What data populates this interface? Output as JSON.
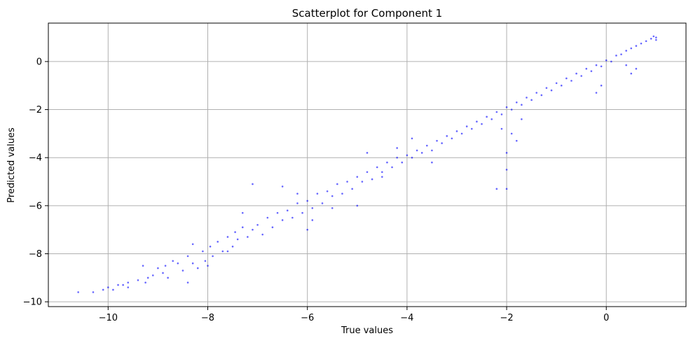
{
  "chart_data": {
    "type": "scatter",
    "title": "Scatterplot for Component 1",
    "xlabel": "True values",
    "ylabel": "Predicted values",
    "xlim": [
      -11.2,
      1.6
    ],
    "ylim": [
      -10.2,
      1.6
    ],
    "xticks": [
      -10,
      -8,
      -6,
      -4,
      -2,
      0
    ],
    "yticks": [
      -10,
      -8,
      -6,
      -4,
      -2,
      0
    ],
    "xtick_labels": [
      "−10",
      "−8",
      "−6",
      "−4",
      "−2",
      "0"
    ],
    "ytick_labels": [
      "−10",
      "−8",
      "−6",
      "−4",
      "−2",
      "0"
    ],
    "grid": true,
    "point_color": "#0000ff",
    "point_alpha": 0.6,
    "series": [
      {
        "points": [
          [
            -10.6,
            -9.6
          ],
          [
            -10.3,
            -9.6
          ],
          [
            -10.1,
            -9.5
          ],
          [
            -10.0,
            -9.4
          ],
          [
            -9.9,
            -9.5
          ],
          [
            -9.8,
            -9.3
          ],
          [
            -9.7,
            -9.3
          ],
          [
            -9.6,
            -9.4
          ],
          [
            -9.4,
            -9.1
          ],
          [
            -9.3,
            -8.5
          ],
          [
            -9.25,
            -9.2
          ],
          [
            -9.2,
            -9.0
          ],
          [
            -9.1,
            -8.9
          ],
          [
            -9.0,
            -8.6
          ],
          [
            -8.9,
            -8.8
          ],
          [
            -8.85,
            -8.5
          ],
          [
            -8.8,
            -9.0
          ],
          [
            -8.7,
            -8.3
          ],
          [
            -8.6,
            -8.4
          ],
          [
            -8.5,
            -8.7
          ],
          [
            -8.4,
            -8.1
          ],
          [
            -8.3,
            -8.4
          ],
          [
            -8.2,
            -8.6
          ],
          [
            -8.1,
            -7.9
          ],
          [
            -8.05,
            -8.3
          ],
          [
            -8.0,
            -8.5
          ],
          [
            -7.95,
            -7.7
          ],
          [
            -7.9,
            -8.1
          ],
          [
            -7.8,
            -7.5
          ],
          [
            -7.7,
            -7.9
          ],
          [
            -7.6,
            -7.3
          ],
          [
            -7.5,
            -7.7
          ],
          [
            -7.45,
            -7.1
          ],
          [
            -7.4,
            -7.4
          ],
          [
            -7.3,
            -6.9
          ],
          [
            -7.2,
            -7.3
          ],
          [
            -7.1,
            -7.0
          ],
          [
            -7.0,
            -6.8
          ],
          [
            -6.9,
            -7.2
          ],
          [
            -6.8,
            -6.5
          ],
          [
            -6.7,
            -6.9
          ],
          [
            -6.6,
            -6.3
          ],
          [
            -6.5,
            -6.6
          ],
          [
            -6.4,
            -6.2
          ],
          [
            -6.3,
            -6.5
          ],
          [
            -6.2,
            -5.9
          ],
          [
            -6.1,
            -6.3
          ],
          [
            -6.0,
            -5.8
          ],
          [
            -5.9,
            -6.1
          ],
          [
            -5.8,
            -5.5
          ],
          [
            -5.7,
            -5.9
          ],
          [
            -5.6,
            -5.4
          ],
          [
            -5.5,
            -5.6
          ],
          [
            -5.4,
            -5.1
          ],
          [
            -5.3,
            -5.5
          ],
          [
            -5.2,
            -5.0
          ],
          [
            -5.1,
            -5.3
          ],
          [
            -5.0,
            -4.8
          ],
          [
            -4.9,
            -5.0
          ],
          [
            -4.8,
            -4.6
          ],
          [
            -4.7,
            -4.9
          ],
          [
            -4.6,
            -4.4
          ],
          [
            -4.5,
            -4.6
          ],
          [
            -4.4,
            -4.2
          ],
          [
            -4.3,
            -4.4
          ],
          [
            -4.2,
            -4.0
          ],
          [
            -4.1,
            -4.2
          ],
          [
            -4.0,
            -3.9
          ],
          [
            -3.9,
            -4.0
          ],
          [
            -3.8,
            -3.7
          ],
          [
            -3.7,
            -3.8
          ],
          [
            -3.6,
            -3.5
          ],
          [
            -3.5,
            -3.7
          ],
          [
            -3.4,
            -3.3
          ],
          [
            -3.3,
            -3.4
          ],
          [
            -3.2,
            -3.1
          ],
          [
            -3.1,
            -3.2
          ],
          [
            -3.0,
            -2.9
          ],
          [
            -2.9,
            -3.0
          ],
          [
            -2.8,
            -2.7
          ],
          [
            -2.7,
            -2.8
          ],
          [
            -2.6,
            -2.5
          ],
          [
            -2.5,
            -2.6
          ],
          [
            -2.4,
            -2.3
          ],
          [
            -2.3,
            -2.4
          ],
          [
            -2.2,
            -2.1
          ],
          [
            -2.1,
            -2.2
          ],
          [
            -2.0,
            -1.9
          ],
          [
            -1.9,
            -2.0
          ],
          [
            -1.8,
            -1.7
          ],
          [
            -1.7,
            -1.8
          ],
          [
            -1.6,
            -1.5
          ],
          [
            -1.5,
            -1.6
          ],
          [
            -1.4,
            -1.3
          ],
          [
            -1.3,
            -1.4
          ],
          [
            -1.2,
            -1.1
          ],
          [
            -1.1,
            -1.2
          ],
          [
            -1.0,
            -0.9
          ],
          [
            -0.9,
            -1.0
          ],
          [
            -0.8,
            -0.7
          ],
          [
            -0.7,
            -0.8
          ],
          [
            -0.6,
            -0.5
          ],
          [
            -0.5,
            -0.6
          ],
          [
            -0.4,
            -0.3
          ],
          [
            -0.3,
            -0.4
          ],
          [
            -0.2,
            -0.15
          ],
          [
            -0.1,
            -0.2
          ],
          [
            0.0,
            0.05
          ],
          [
            0.1,
            0.0
          ],
          [
            0.2,
            0.25
          ],
          [
            0.3,
            0.3
          ],
          [
            0.4,
            0.45
          ],
          [
            0.5,
            0.55
          ],
          [
            0.6,
            0.65
          ],
          [
            0.7,
            0.75
          ],
          [
            0.8,
            0.85
          ],
          [
            0.9,
            0.95
          ],
          [
            1.0,
            1.0
          ],
          [
            1.0,
            0.9
          ],
          [
            0.95,
            1.05
          ],
          [
            -2.2,
            -5.3
          ],
          [
            -2.0,
            -5.3
          ],
          [
            -2.0,
            -4.5
          ],
          [
            -2.0,
            -3.8
          ],
          [
            -1.9,
            -3.0
          ],
          [
            -2.1,
            -2.8
          ],
          [
            -1.8,
            -3.3
          ],
          [
            -1.7,
            -2.4
          ],
          [
            -0.2,
            -1.3
          ],
          [
            -0.1,
            -1.0
          ],
          [
            0.5,
            -0.5
          ],
          [
            0.6,
            -0.3
          ],
          [
            0.4,
            -0.15
          ],
          [
            -5.9,
            -6.6
          ],
          [
            -5.0,
            -6.0
          ],
          [
            -4.5,
            -4.8
          ],
          [
            -4.8,
            -3.8
          ],
          [
            -4.2,
            -3.6
          ],
          [
            -6.2,
            -5.5
          ],
          [
            -6.5,
            -5.2
          ],
          [
            -7.3,
            -6.3
          ],
          [
            -7.1,
            -5.1
          ],
          [
            -7.6,
            -7.9
          ],
          [
            -8.3,
            -7.6
          ],
          [
            -8.4,
            -9.2
          ],
          [
            -9.6,
            -9.2
          ],
          [
            -6.0,
            -7.0
          ],
          [
            -5.5,
            -6.1
          ],
          [
            -3.9,
            -3.2
          ],
          [
            -3.5,
            -4.2
          ]
        ]
      }
    ]
  }
}
